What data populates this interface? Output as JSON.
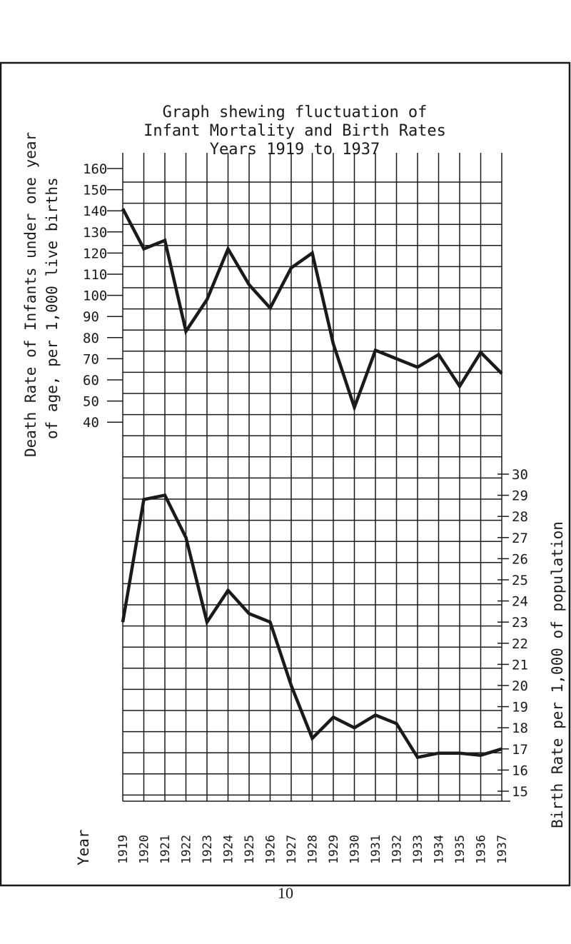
{
  "chart_data": {
    "type": "line",
    "title_lines": [
      "Graph shewing fluctuation of",
      "Infant Mortality and Birth Rates",
      "Years 1919 to 1937"
    ],
    "xlabel": "Year",
    "categories": [
      "1919",
      "1920",
      "1921",
      "1922",
      "1923",
      "1924",
      "1925",
      "1926",
      "1927",
      "1928",
      "1929",
      "1930",
      "1931",
      "1932",
      "1933",
      "1934",
      "1935",
      "1936",
      "1937"
    ],
    "left_axis": {
      "label_lines": [
        "Death Rate of Infants under one year",
        "of age, per 1,000 live births"
      ],
      "ticks": [
        "160",
        "150",
        "140",
        "130",
        "120",
        "110",
        "100",
        "90",
        "80",
        "70",
        "60",
        "50",
        "40"
      ]
    },
    "right_axis": {
      "label": "Birth Rate per 1,000 of population",
      "ticks": [
        "30",
        "29",
        "28",
        "27",
        "26",
        "25",
        "24",
        "23",
        "22",
        "21",
        "20",
        "19",
        "18",
        "17",
        "16",
        "15"
      ]
    },
    "series": [
      {
        "values": [
          141,
          122,
          126,
          83,
          98,
          122,
          105,
          94,
          113,
          120,
          77,
          47,
          74,
          70,
          66,
          72,
          57,
          73,
          63
        ]
      },
      {
        "values": [
          23,
          28.8,
          29,
          27,
          23,
          24.5,
          23.4,
          23,
          20,
          17.5,
          18.5,
          18,
          18.6,
          18.2,
          16.6,
          16.8,
          16.8,
          16.7,
          17
        ]
      }
    ]
  },
  "page_number": "10"
}
